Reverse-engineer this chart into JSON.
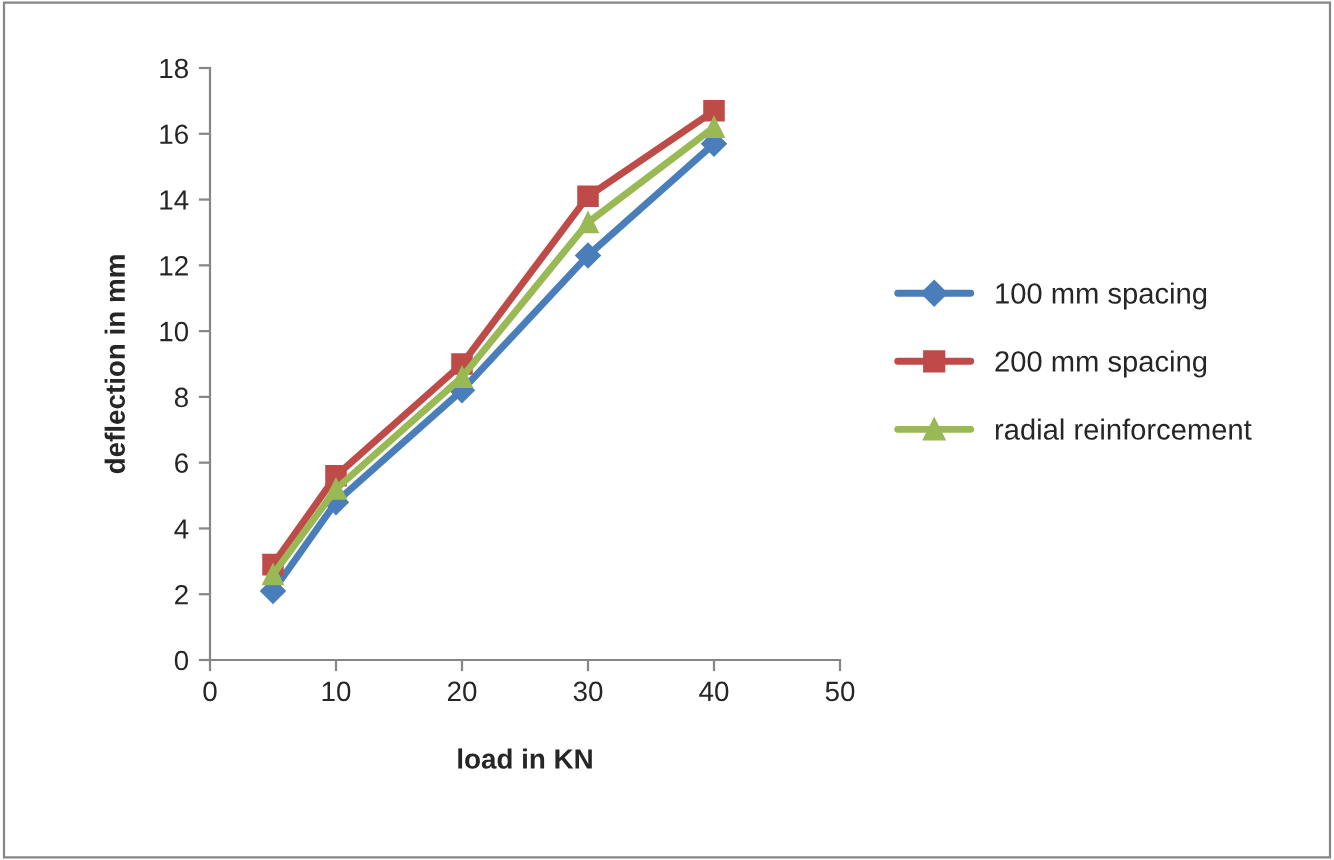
{
  "chart_data": {
    "type": "line",
    "xlabel": "load in KN",
    "ylabel": "deflection in mm",
    "x": [
      5,
      10,
      20,
      30,
      40
    ],
    "series": [
      {
        "name": "100 mm spacing",
        "color": "#4a7ebb",
        "marker": "diamond",
        "values": [
          2.1,
          4.8,
          8.2,
          12.3,
          15.7
        ]
      },
      {
        "name": "200 mm spacing",
        "color": "#be4b48",
        "marker": "square",
        "values": [
          2.9,
          5.6,
          9.0,
          14.1,
          16.7
        ]
      },
      {
        "name": "radial reinforcement",
        "color": "#98b954",
        "marker": "triangle",
        "values": [
          2.6,
          5.2,
          8.6,
          13.3,
          16.2
        ]
      }
    ],
    "xlim": [
      0,
      50
    ],
    "xticks": [
      0,
      10,
      20,
      30,
      40,
      50
    ],
    "ylim": [
      0,
      18
    ],
    "yticks": [
      0,
      2,
      4,
      6,
      8,
      10,
      12,
      14,
      16,
      18
    ],
    "grid": false,
    "legend": "right",
    "line_style": "solid"
  }
}
